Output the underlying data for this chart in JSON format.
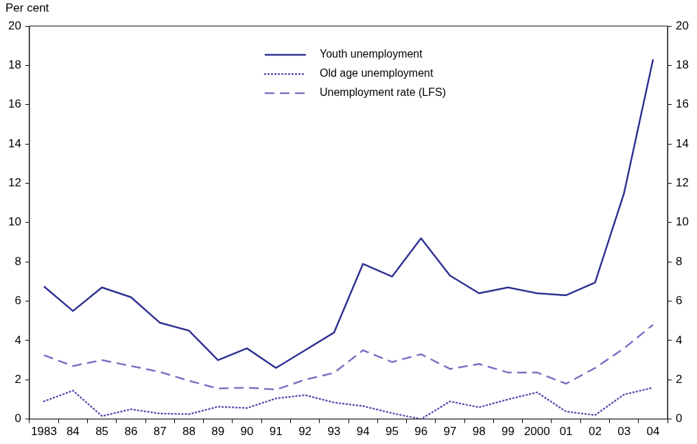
{
  "chart_data": {
    "type": "line",
    "ylabel": "Per cent",
    "categories": [
      "1983",
      "84",
      "85",
      "86",
      "87",
      "88",
      "89",
      "90",
      "91",
      "92",
      "93",
      "94",
      "95",
      "96",
      "97",
      "98",
      "99",
      "2000",
      "01",
      "02",
      "03",
      "04"
    ],
    "series": [
      {
        "name": "Youth unemployment",
        "color": "#2e3192",
        "line_style": "solid",
        "values": [
          6.75,
          5.5,
          6.7,
          6.2,
          4.9,
          4.5,
          3.0,
          3.6,
          2.6,
          3.5,
          4.4,
          7.9,
          7.25,
          9.2,
          7.3,
          6.4,
          6.7,
          6.4,
          6.3,
          6.95,
          11.5,
          18.3
        ]
      },
      {
        "name": "Old age unemployment",
        "color": "#5a4fb0",
        "line_style": "dotted",
        "values": [
          0.9,
          1.45,
          0.15,
          0.5,
          0.28,
          0.25,
          0.63,
          0.56,
          1.05,
          1.22,
          0.84,
          0.66,
          0.3,
          0.0,
          0.9,
          0.6,
          1.0,
          1.36,
          0.38,
          0.2,
          1.25,
          1.6
        ]
      },
      {
        "name": "Unemployment rate (LFS)",
        "color": "#7b70c4",
        "line_style": "dashed",
        "values": [
          3.25,
          2.7,
          3.0,
          2.7,
          2.4,
          1.95,
          1.55,
          1.6,
          1.5,
          2.0,
          2.35,
          3.5,
          2.9,
          3.3,
          2.55,
          2.8,
          2.37,
          2.37,
          1.8,
          2.6,
          3.6,
          4.8
        ]
      }
    ],
    "ylim": [
      0,
      20
    ],
    "yticks": [
      0,
      2,
      4,
      6,
      8,
      10,
      12,
      14,
      16,
      18,
      20
    ],
    "y2lim": [
      0,
      20
    ],
    "y2ticks": [
      0,
      2,
      4,
      6,
      8,
      10,
      12,
      14,
      16,
      18,
      20
    ],
    "grid": false,
    "legend": "top",
    "marker": "none"
  }
}
